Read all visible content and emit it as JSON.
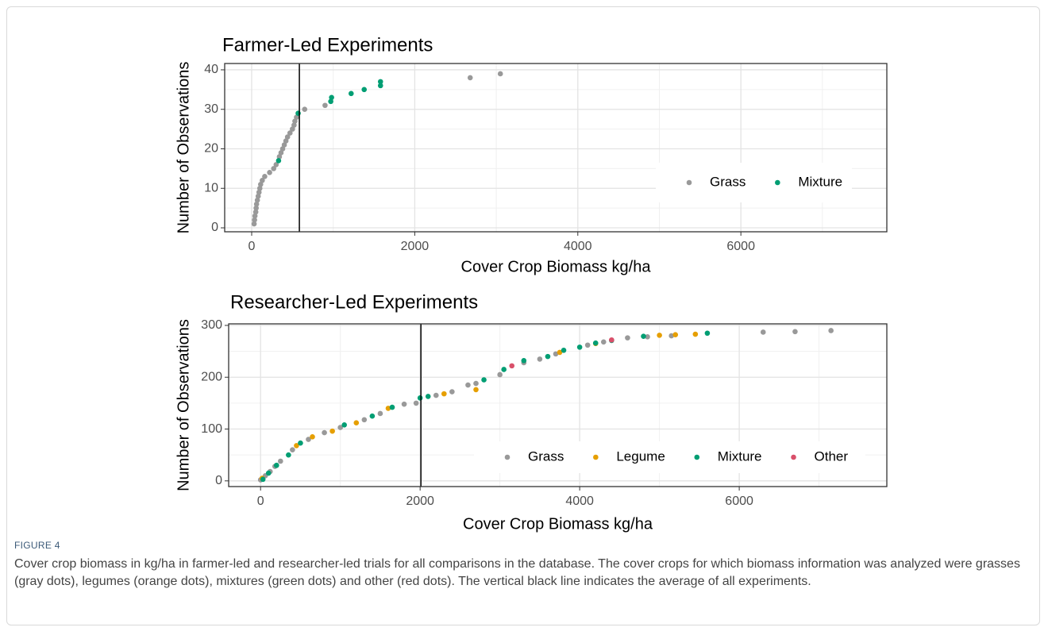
{
  "chart_data": [
    {
      "type": "scatter",
      "title": "Farmer-Led Experiments",
      "x_label": "Cover Crop Biomass kg/ha",
      "y_label": "Number of Observations",
      "xlim": [
        -331,
        7790
      ],
      "xticks": [
        0,
        2000,
        4000,
        6000
      ],
      "ylim": [
        -1,
        41.6
      ],
      "yticks": [
        0,
        10,
        20,
        30,
        40
      ],
      "grid": true,
      "legend": "bottom-right",
      "vline_x": 585,
      "series": [
        {
          "name": "Grass",
          "color": "#999999",
          "x": [
            30,
            35,
            40,
            50,
            55,
            60,
            70,
            80,
            90,
            100,
            110,
            130,
            160,
            220,
            270,
            300,
            340,
            360,
            380,
            400,
            420,
            440,
            470,
            500,
            520,
            530,
            550,
            650,
            900,
            2680,
            3050
          ],
          "values": [
            1,
            2,
            3,
            4,
            5,
            6,
            7,
            8,
            9,
            10,
            11,
            12,
            13,
            14,
            15,
            16,
            18,
            19,
            20,
            21,
            22,
            23,
            24,
            25,
            26,
            27,
            28,
            30,
            31,
            38,
            39
          ]
        },
        {
          "name": "Mixture",
          "color": "#009E73",
          "x": [
            330,
            570,
            970,
            980,
            1220,
            1380,
            1580,
            1580
          ],
          "values": [
            17,
            29,
            32,
            33,
            34,
            35,
            36,
            37
          ]
        }
      ]
    },
    {
      "type": "scatter",
      "title": "Researcher-Led Experiments",
      "x_label": "Cover Crop Biomass kg/ha",
      "y_label": "Number of Observations",
      "xlim": [
        -400,
        7850
      ],
      "xticks": [
        0,
        2000,
        4000,
        6000
      ],
      "ylim": [
        -11,
        303
      ],
      "yticks": [
        0,
        100,
        200,
        300
      ],
      "grid": true,
      "legend": "bottom-right",
      "vline_x": 2010,
      "series": [
        {
          "name": "Grass",
          "color": "#999999",
          "x": [
            0,
            60,
            120,
            180,
            250,
            400,
            600,
            800,
            1000,
            1300,
            1500,
            1800,
            1950,
            2200,
            2400,
            2600,
            2700,
            3000,
            3300,
            3500,
            3700,
            4100,
            4300,
            4600,
            4850,
            5150,
            6300,
            6700,
            7150
          ],
          "values": [
            2,
            10,
            18,
            28,
            38,
            60,
            80,
            93,
            103,
            118,
            130,
            148,
            150,
            165,
            172,
            185,
            188,
            205,
            228,
            235,
            245,
            262,
            268,
            276,
            278,
            280,
            287,
            288,
            290
          ]
        },
        {
          "name": "Legume",
          "color": "#E69F00",
          "x": [
            20,
            450,
            650,
            900,
            1200,
            1600,
            2300,
            2700,
            3750,
            4200,
            5000,
            5200,
            5450
          ],
          "values": [
            5,
            68,
            85,
            96,
            112,
            140,
            168,
            176,
            248,
            265,
            281,
            282,
            283
          ]
        },
        {
          "name": "Mixture",
          "color": "#009E73",
          "x": [
            30,
            100,
            200,
            350,
            500,
            1050,
            1400,
            1650,
            2000,
            2100,
            2800,
            3050,
            3300,
            3600,
            3800,
            4000,
            4200,
            4400,
            4800,
            5600
          ],
          "values": [
            3,
            15,
            30,
            50,
            73,
            108,
            125,
            142,
            160,
            163,
            195,
            215,
            232,
            240,
            252,
            258,
            266,
            271,
            279,
            285
          ]
        },
        {
          "name": "Other",
          "color": "#D9506A",
          "x": [
            3150,
            4400
          ],
          "values": [
            222,
            272
          ]
        }
      ]
    }
  ],
  "figure": {
    "label": "FIGURE 4",
    "caption": "Cover crop biomass in kg/ha in farmer-led and researcher-led trials for all comparisons in the database. The cover crops for which biomass information was analyzed were grasses (gray dots), legumes (orange dots), mixtures (green dots) and other (red dots). The vertical black line indicates the average of all experiments."
  }
}
